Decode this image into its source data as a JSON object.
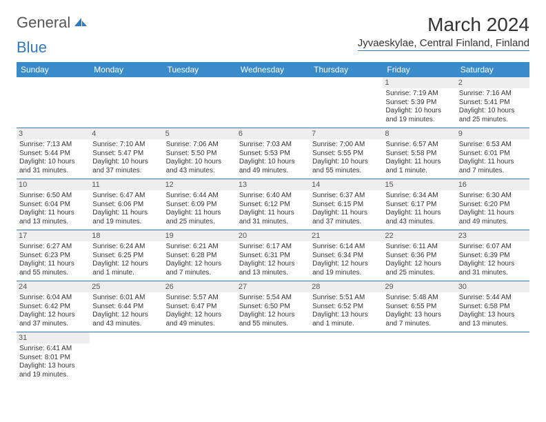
{
  "logo": {
    "textA": "General",
    "textB": "Blue"
  },
  "title": "March 2024",
  "location": "Jyvaeskylae, Central Finland, Finland",
  "headerBg": "#3a8bc9",
  "headerFg": "#ffffff",
  "dayBg": "#eeeeee",
  "ruleColor": "#2f7abf",
  "columns": [
    "Sunday",
    "Monday",
    "Tuesday",
    "Wednesday",
    "Thursday",
    "Friday",
    "Saturday"
  ],
  "weeks": [
    [
      null,
      null,
      null,
      null,
      null,
      {
        "n": "1",
        "sr": "Sunrise: 7:19 AM",
        "ss": "Sunset: 5:39 PM",
        "d1": "Daylight: 10 hours",
        "d2": "and 19 minutes."
      },
      {
        "n": "2",
        "sr": "Sunrise: 7:16 AM",
        "ss": "Sunset: 5:41 PM",
        "d1": "Daylight: 10 hours",
        "d2": "and 25 minutes."
      }
    ],
    [
      {
        "n": "3",
        "sr": "Sunrise: 7:13 AM",
        "ss": "Sunset: 5:44 PM",
        "d1": "Daylight: 10 hours",
        "d2": "and 31 minutes."
      },
      {
        "n": "4",
        "sr": "Sunrise: 7:10 AM",
        "ss": "Sunset: 5:47 PM",
        "d1": "Daylight: 10 hours",
        "d2": "and 37 minutes."
      },
      {
        "n": "5",
        "sr": "Sunrise: 7:06 AM",
        "ss": "Sunset: 5:50 PM",
        "d1": "Daylight: 10 hours",
        "d2": "and 43 minutes."
      },
      {
        "n": "6",
        "sr": "Sunrise: 7:03 AM",
        "ss": "Sunset: 5:53 PM",
        "d1": "Daylight: 10 hours",
        "d2": "and 49 minutes."
      },
      {
        "n": "7",
        "sr": "Sunrise: 7:00 AM",
        "ss": "Sunset: 5:55 PM",
        "d1": "Daylight: 10 hours",
        "d2": "and 55 minutes."
      },
      {
        "n": "8",
        "sr": "Sunrise: 6:57 AM",
        "ss": "Sunset: 5:58 PM",
        "d1": "Daylight: 11 hours",
        "d2": "and 1 minute."
      },
      {
        "n": "9",
        "sr": "Sunrise: 6:53 AM",
        "ss": "Sunset: 6:01 PM",
        "d1": "Daylight: 11 hours",
        "d2": "and 7 minutes."
      }
    ],
    [
      {
        "n": "10",
        "sr": "Sunrise: 6:50 AM",
        "ss": "Sunset: 6:04 PM",
        "d1": "Daylight: 11 hours",
        "d2": "and 13 minutes."
      },
      {
        "n": "11",
        "sr": "Sunrise: 6:47 AM",
        "ss": "Sunset: 6:06 PM",
        "d1": "Daylight: 11 hours",
        "d2": "and 19 minutes."
      },
      {
        "n": "12",
        "sr": "Sunrise: 6:44 AM",
        "ss": "Sunset: 6:09 PM",
        "d1": "Daylight: 11 hours",
        "d2": "and 25 minutes."
      },
      {
        "n": "13",
        "sr": "Sunrise: 6:40 AM",
        "ss": "Sunset: 6:12 PM",
        "d1": "Daylight: 11 hours",
        "d2": "and 31 minutes."
      },
      {
        "n": "14",
        "sr": "Sunrise: 6:37 AM",
        "ss": "Sunset: 6:15 PM",
        "d1": "Daylight: 11 hours",
        "d2": "and 37 minutes."
      },
      {
        "n": "15",
        "sr": "Sunrise: 6:34 AM",
        "ss": "Sunset: 6:17 PM",
        "d1": "Daylight: 11 hours",
        "d2": "and 43 minutes."
      },
      {
        "n": "16",
        "sr": "Sunrise: 6:30 AM",
        "ss": "Sunset: 6:20 PM",
        "d1": "Daylight: 11 hours",
        "d2": "and 49 minutes."
      }
    ],
    [
      {
        "n": "17",
        "sr": "Sunrise: 6:27 AM",
        "ss": "Sunset: 6:23 PM",
        "d1": "Daylight: 11 hours",
        "d2": "and 55 minutes."
      },
      {
        "n": "18",
        "sr": "Sunrise: 6:24 AM",
        "ss": "Sunset: 6:25 PM",
        "d1": "Daylight: 12 hours",
        "d2": "and 1 minute."
      },
      {
        "n": "19",
        "sr": "Sunrise: 6:21 AM",
        "ss": "Sunset: 6:28 PM",
        "d1": "Daylight: 12 hours",
        "d2": "and 7 minutes."
      },
      {
        "n": "20",
        "sr": "Sunrise: 6:17 AM",
        "ss": "Sunset: 6:31 PM",
        "d1": "Daylight: 12 hours",
        "d2": "and 13 minutes."
      },
      {
        "n": "21",
        "sr": "Sunrise: 6:14 AM",
        "ss": "Sunset: 6:34 PM",
        "d1": "Daylight: 12 hours",
        "d2": "and 19 minutes."
      },
      {
        "n": "22",
        "sr": "Sunrise: 6:11 AM",
        "ss": "Sunset: 6:36 PM",
        "d1": "Daylight: 12 hours",
        "d2": "and 25 minutes."
      },
      {
        "n": "23",
        "sr": "Sunrise: 6:07 AM",
        "ss": "Sunset: 6:39 PM",
        "d1": "Daylight: 12 hours",
        "d2": "and 31 minutes."
      }
    ],
    [
      {
        "n": "24",
        "sr": "Sunrise: 6:04 AM",
        "ss": "Sunset: 6:42 PM",
        "d1": "Daylight: 12 hours",
        "d2": "and 37 minutes."
      },
      {
        "n": "25",
        "sr": "Sunrise: 6:01 AM",
        "ss": "Sunset: 6:44 PM",
        "d1": "Daylight: 12 hours",
        "d2": "and 43 minutes."
      },
      {
        "n": "26",
        "sr": "Sunrise: 5:57 AM",
        "ss": "Sunset: 6:47 PM",
        "d1": "Daylight: 12 hours",
        "d2": "and 49 minutes."
      },
      {
        "n": "27",
        "sr": "Sunrise: 5:54 AM",
        "ss": "Sunset: 6:50 PM",
        "d1": "Daylight: 12 hours",
        "d2": "and 55 minutes."
      },
      {
        "n": "28",
        "sr": "Sunrise: 5:51 AM",
        "ss": "Sunset: 6:52 PM",
        "d1": "Daylight: 13 hours",
        "d2": "and 1 minute."
      },
      {
        "n": "29",
        "sr": "Sunrise: 5:48 AM",
        "ss": "Sunset: 6:55 PM",
        "d1": "Daylight: 13 hours",
        "d2": "and 7 minutes."
      },
      {
        "n": "30",
        "sr": "Sunrise: 5:44 AM",
        "ss": "Sunset: 6:58 PM",
        "d1": "Daylight: 13 hours",
        "d2": "and 13 minutes."
      }
    ],
    [
      {
        "n": "31",
        "sr": "Sunrise: 6:41 AM",
        "ss": "Sunset: 8:01 PM",
        "d1": "Daylight: 13 hours",
        "d2": "and 19 minutes."
      },
      null,
      null,
      null,
      null,
      null,
      null
    ]
  ]
}
